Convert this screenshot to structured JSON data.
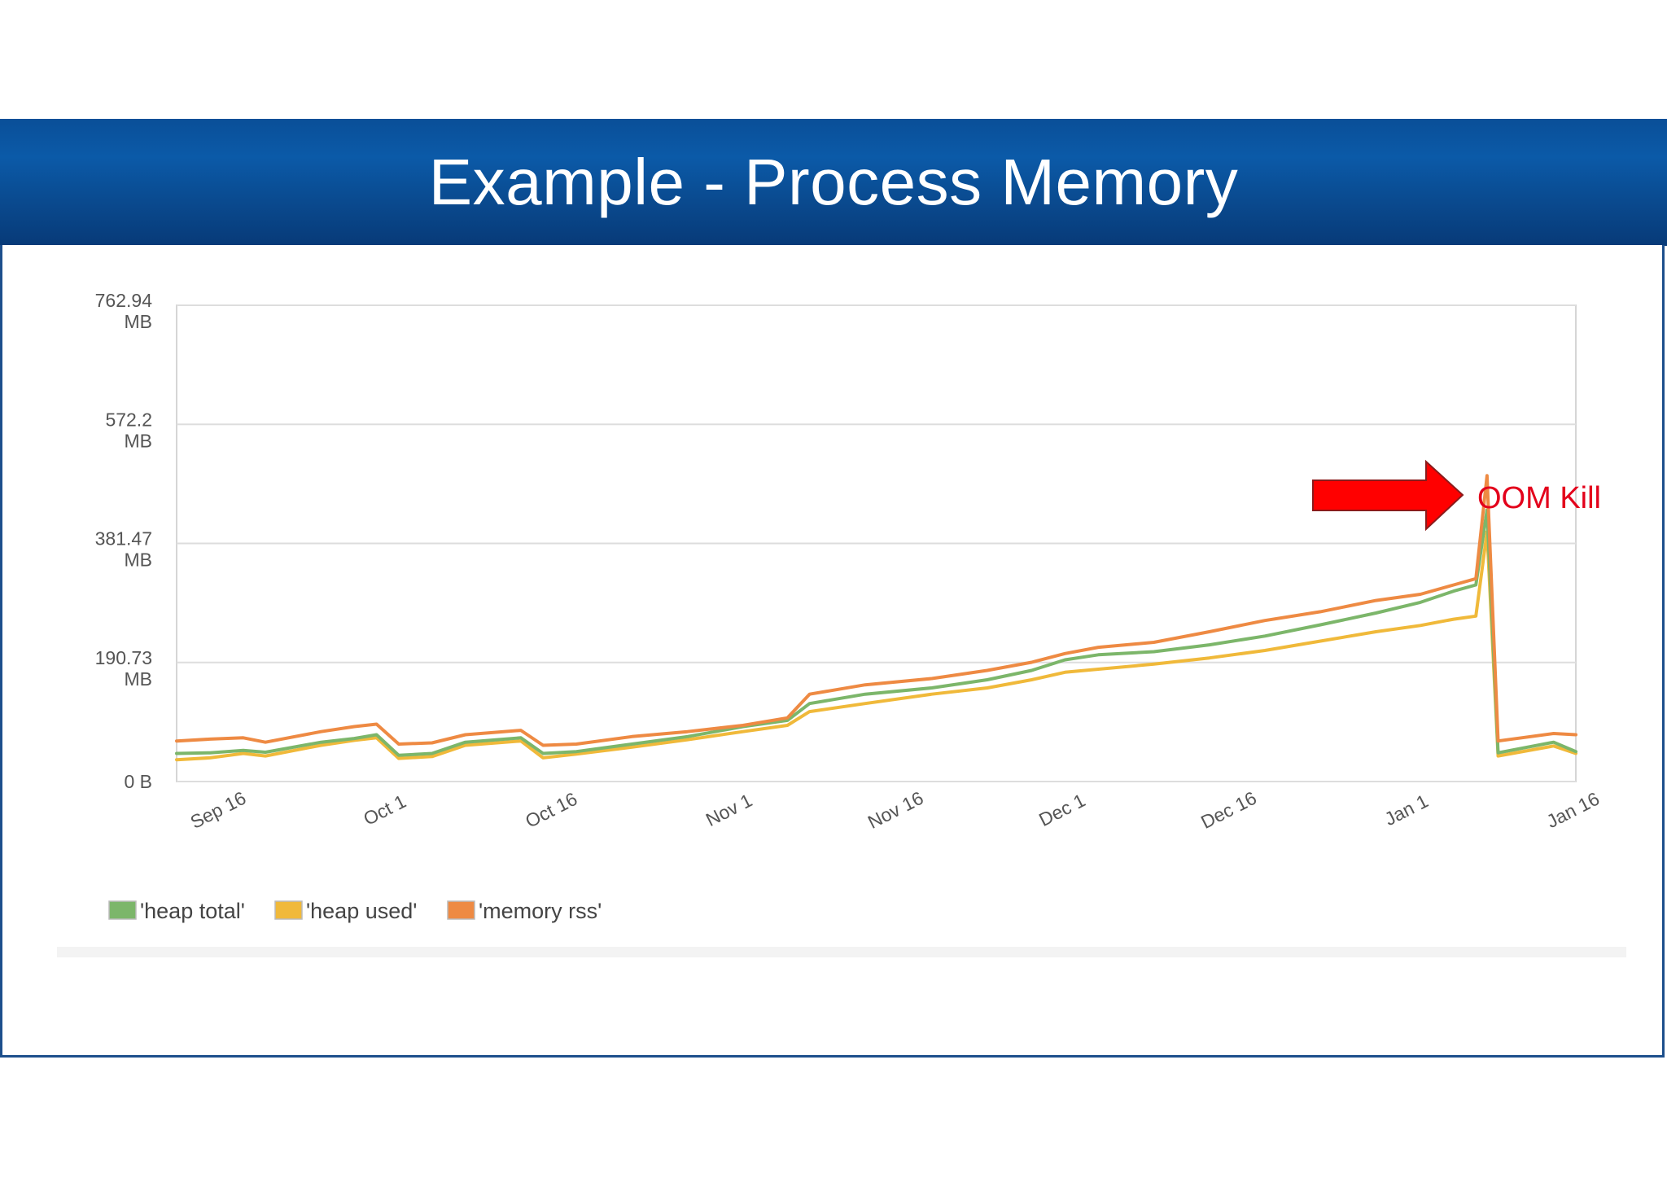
{
  "slide": {
    "title": "Example - Process Memory"
  },
  "annotation": {
    "text": "OOM Kill",
    "color": "#ff0000"
  },
  "chart_data": {
    "type": "line",
    "title": "",
    "xlabel": "",
    "ylabel": "",
    "x_unit": "date",
    "y_unit": "MB",
    "xlim": [
      "Sep 12",
      "Jan 16"
    ],
    "ylim": [
      0,
      762.94
    ],
    "y_ticks": [
      {
        "value": 762.94,
        "lines": [
          "762.94",
          "MB"
        ]
      },
      {
        "value": 572.2,
        "lines": [
          "572.2",
          "MB"
        ]
      },
      {
        "value": 381.47,
        "lines": [
          "381.47",
          "MB"
        ]
      },
      {
        "value": 190.73,
        "lines": [
          "190.73",
          "MB"
        ]
      },
      {
        "value": 0,
        "lines": [
          "0 B"
        ]
      }
    ],
    "x_ticks": [
      "Sep 16",
      "Oct 1",
      "Oct 16",
      "Nov 1",
      "Nov 16",
      "Dec 1",
      "Dec 16",
      "Jan 1",
      "Jan 16"
    ],
    "grid": true,
    "legend_position": "bottom-left",
    "x": [
      "Sep 12",
      "Sep 15",
      "Sep 18",
      "Sep 20",
      "Sep 25",
      "Sep 28",
      "Sep 30",
      "Oct 2",
      "Oct 5",
      "Oct 8",
      "Oct 13",
      "Oct 15",
      "Oct 18",
      "Oct 23",
      "Oct 28",
      "Nov 2",
      "Nov 6",
      "Nov 8",
      "Nov 13",
      "Nov 19",
      "Nov 24",
      "Nov 28",
      "Dec 1",
      "Dec 4",
      "Dec 9",
      "Dec 14",
      "Dec 19",
      "Dec 24",
      "Dec 29",
      "Jan 2",
      "Jan 5",
      "Jan 7",
      "Jan 8",
      "Jan 9",
      "Jan 14",
      "Jan 16"
    ],
    "series": [
      {
        "name": "'heap total'",
        "color": "#7cb66a",
        "values": [
          45,
          46,
          50,
          47,
          63,
          69,
          75,
          42,
          45,
          63,
          70,
          45,
          48,
          60,
          72,
          88,
          98,
          125,
          140,
          150,
          163,
          178,
          195,
          203,
          208,
          219,
          233,
          251,
          270,
          287,
          305,
          315,
          435,
          46,
          63,
          48
        ]
      },
      {
        "name": "'heap used'",
        "color": "#f0b93a",
        "values": [
          35,
          38,
          45,
          41,
          58,
          66,
          70,
          37,
          40,
          58,
          65,
          38,
          44,
          55,
          67,
          80,
          90,
          112,
          125,
          140,
          150,
          163,
          175,
          180,
          188,
          198,
          210,
          225,
          240,
          250,
          260,
          265,
          400,
          41,
          57,
          45
        ]
      },
      {
        "name": "'memory rss'",
        "color": "#ee8a43",
        "values": [
          65,
          68,
          70,
          63,
          80,
          88,
          92,
          60,
          62,
          75,
          82,
          58,
          60,
          72,
          80,
          90,
          102,
          140,
          155,
          165,
          178,
          191,
          205,
          215,
          223,
          240,
          258,
          272,
          290,
          300,
          315,
          325,
          490,
          65,
          77,
          75
        ]
      }
    ]
  }
}
